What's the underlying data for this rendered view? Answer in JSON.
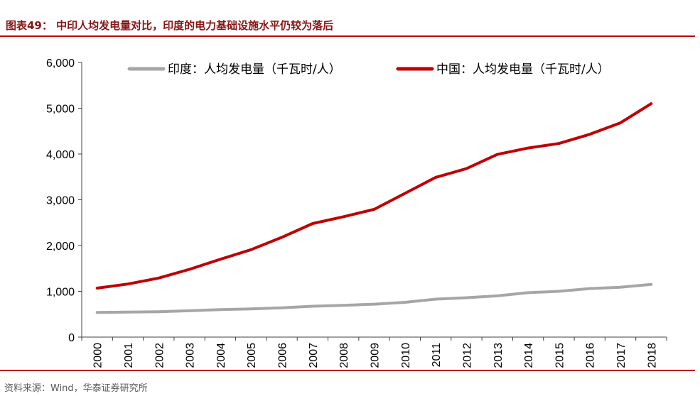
{
  "header": {
    "title": "图表49：   中印人均发电量对比，印度的电力基础设施水平仍较为落后"
  },
  "footer": {
    "source": "资料来源：Wind，华泰证券研究所"
  },
  "chart_data": {
    "type": "line",
    "categories": [
      "2000",
      "2001",
      "2002",
      "2003",
      "2004",
      "2005",
      "2006",
      "2007",
      "2008",
      "2009",
      "2010",
      "2011",
      "2012",
      "2013",
      "2014",
      "2015",
      "2016",
      "2017",
      "2018"
    ],
    "series": [
      {
        "name": "印度：人均发电量（千瓦时/人）",
        "color": "#a6a6a6",
        "values": [
          540,
          545,
          555,
          575,
          600,
          615,
          640,
          675,
          695,
          720,
          760,
          830,
          860,
          900,
          970,
          1000,
          1060,
          1090,
          1150
        ]
      },
      {
        "name": "中国：人均发电量（千瓦时/人）",
        "color": "#c00000",
        "values": [
          1070,
          1160,
          1290,
          1480,
          1700,
          1910,
          2180,
          2480,
          2630,
          2790,
          3140,
          3490,
          3680,
          3990,
          4130,
          4230,
          4430,
          4680,
          5100
        ]
      }
    ],
    "ylim": [
      0,
      6000
    ],
    "yticks": [
      "0",
      "1,000",
      "2,000",
      "3,000",
      "4,000",
      "5,000",
      "6,000"
    ],
    "grid": false,
    "legend_position": "top"
  }
}
